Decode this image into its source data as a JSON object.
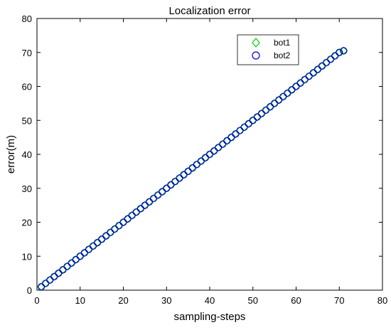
{
  "chart_data": {
    "type": "scatter",
    "title": "Localization error",
    "xlabel": "sampling-steps",
    "ylabel": "error(m)",
    "xlim": [
      0,
      80
    ],
    "ylim": [
      0,
      80
    ],
    "xticks": [
      0,
      10,
      20,
      30,
      40,
      50,
      60,
      70,
      80
    ],
    "yticks": [
      0,
      10,
      20,
      30,
      40,
      50,
      60,
      70,
      80
    ],
    "grid": false,
    "legend_position": "top-right",
    "x": [
      1,
      2,
      3,
      4,
      5,
      6,
      7,
      8,
      9,
      10,
      11,
      12,
      13,
      14,
      15,
      16,
      17,
      18,
      19,
      20,
      21,
      22,
      23,
      24,
      25,
      26,
      27,
      28,
      29,
      30,
      31,
      32,
      33,
      34,
      35,
      36,
      37,
      38,
      39,
      40,
      41,
      42,
      43,
      44,
      45,
      46,
      47,
      48,
      49,
      50,
      51,
      52,
      53,
      54,
      55,
      56,
      57,
      58,
      59,
      60,
      61,
      62,
      63,
      64,
      65,
      66,
      67,
      68,
      69,
      70,
      71
    ],
    "series": [
      {
        "name": "bot1",
        "marker": "diamond",
        "color": "#00cc00",
        "values": [
          1.0,
          2.0,
          3.0,
          4.0,
          5.0,
          6.0,
          7.0,
          8.0,
          9.0,
          10.0,
          11.0,
          12.0,
          13.0,
          14.0,
          15.0,
          16.0,
          17.0,
          18.0,
          19.0,
          20.0,
          21.0,
          22.0,
          23.0,
          24.0,
          25.0,
          26.0,
          27.0,
          28.0,
          29.0,
          30.0,
          31.0,
          32.0,
          33.0,
          34.0,
          35.0,
          36.0,
          37.0,
          38.0,
          39.0,
          40.0,
          41.0,
          42.0,
          43.0,
          44.0,
          45.0,
          46.0,
          47.0,
          48.0,
          49.0,
          50.0,
          51.0,
          52.0,
          53.0,
          54.0,
          55.0,
          56.0,
          57.0,
          58.0,
          59.0,
          60.0,
          61.0,
          62.0,
          63.0,
          64.0,
          65.0,
          66.0,
          67.0,
          68.0,
          69.0,
          70.0,
          70.5
        ]
      },
      {
        "name": "bot2",
        "marker": "circle",
        "color": "#0000cc",
        "values": [
          1.0,
          2.0,
          3.0,
          4.0,
          5.0,
          6.0,
          7.0,
          8.0,
          9.0,
          10.0,
          11.0,
          12.0,
          13.0,
          14.0,
          15.0,
          16.0,
          17.0,
          18.0,
          19.0,
          20.0,
          21.0,
          22.0,
          23.0,
          24.0,
          25.0,
          26.0,
          27.0,
          28.0,
          29.0,
          30.0,
          31.0,
          32.0,
          33.0,
          34.0,
          35.0,
          36.0,
          37.0,
          38.0,
          39.0,
          40.0,
          41.0,
          42.0,
          43.0,
          44.0,
          45.0,
          46.0,
          47.0,
          48.0,
          49.0,
          50.0,
          51.0,
          52.0,
          53.0,
          54.0,
          55.0,
          56.0,
          57.0,
          58.0,
          59.0,
          60.0,
          61.0,
          62.0,
          63.0,
          64.0,
          65.0,
          66.0,
          67.0,
          68.0,
          69.0,
          70.0,
          70.5
        ]
      }
    ]
  }
}
